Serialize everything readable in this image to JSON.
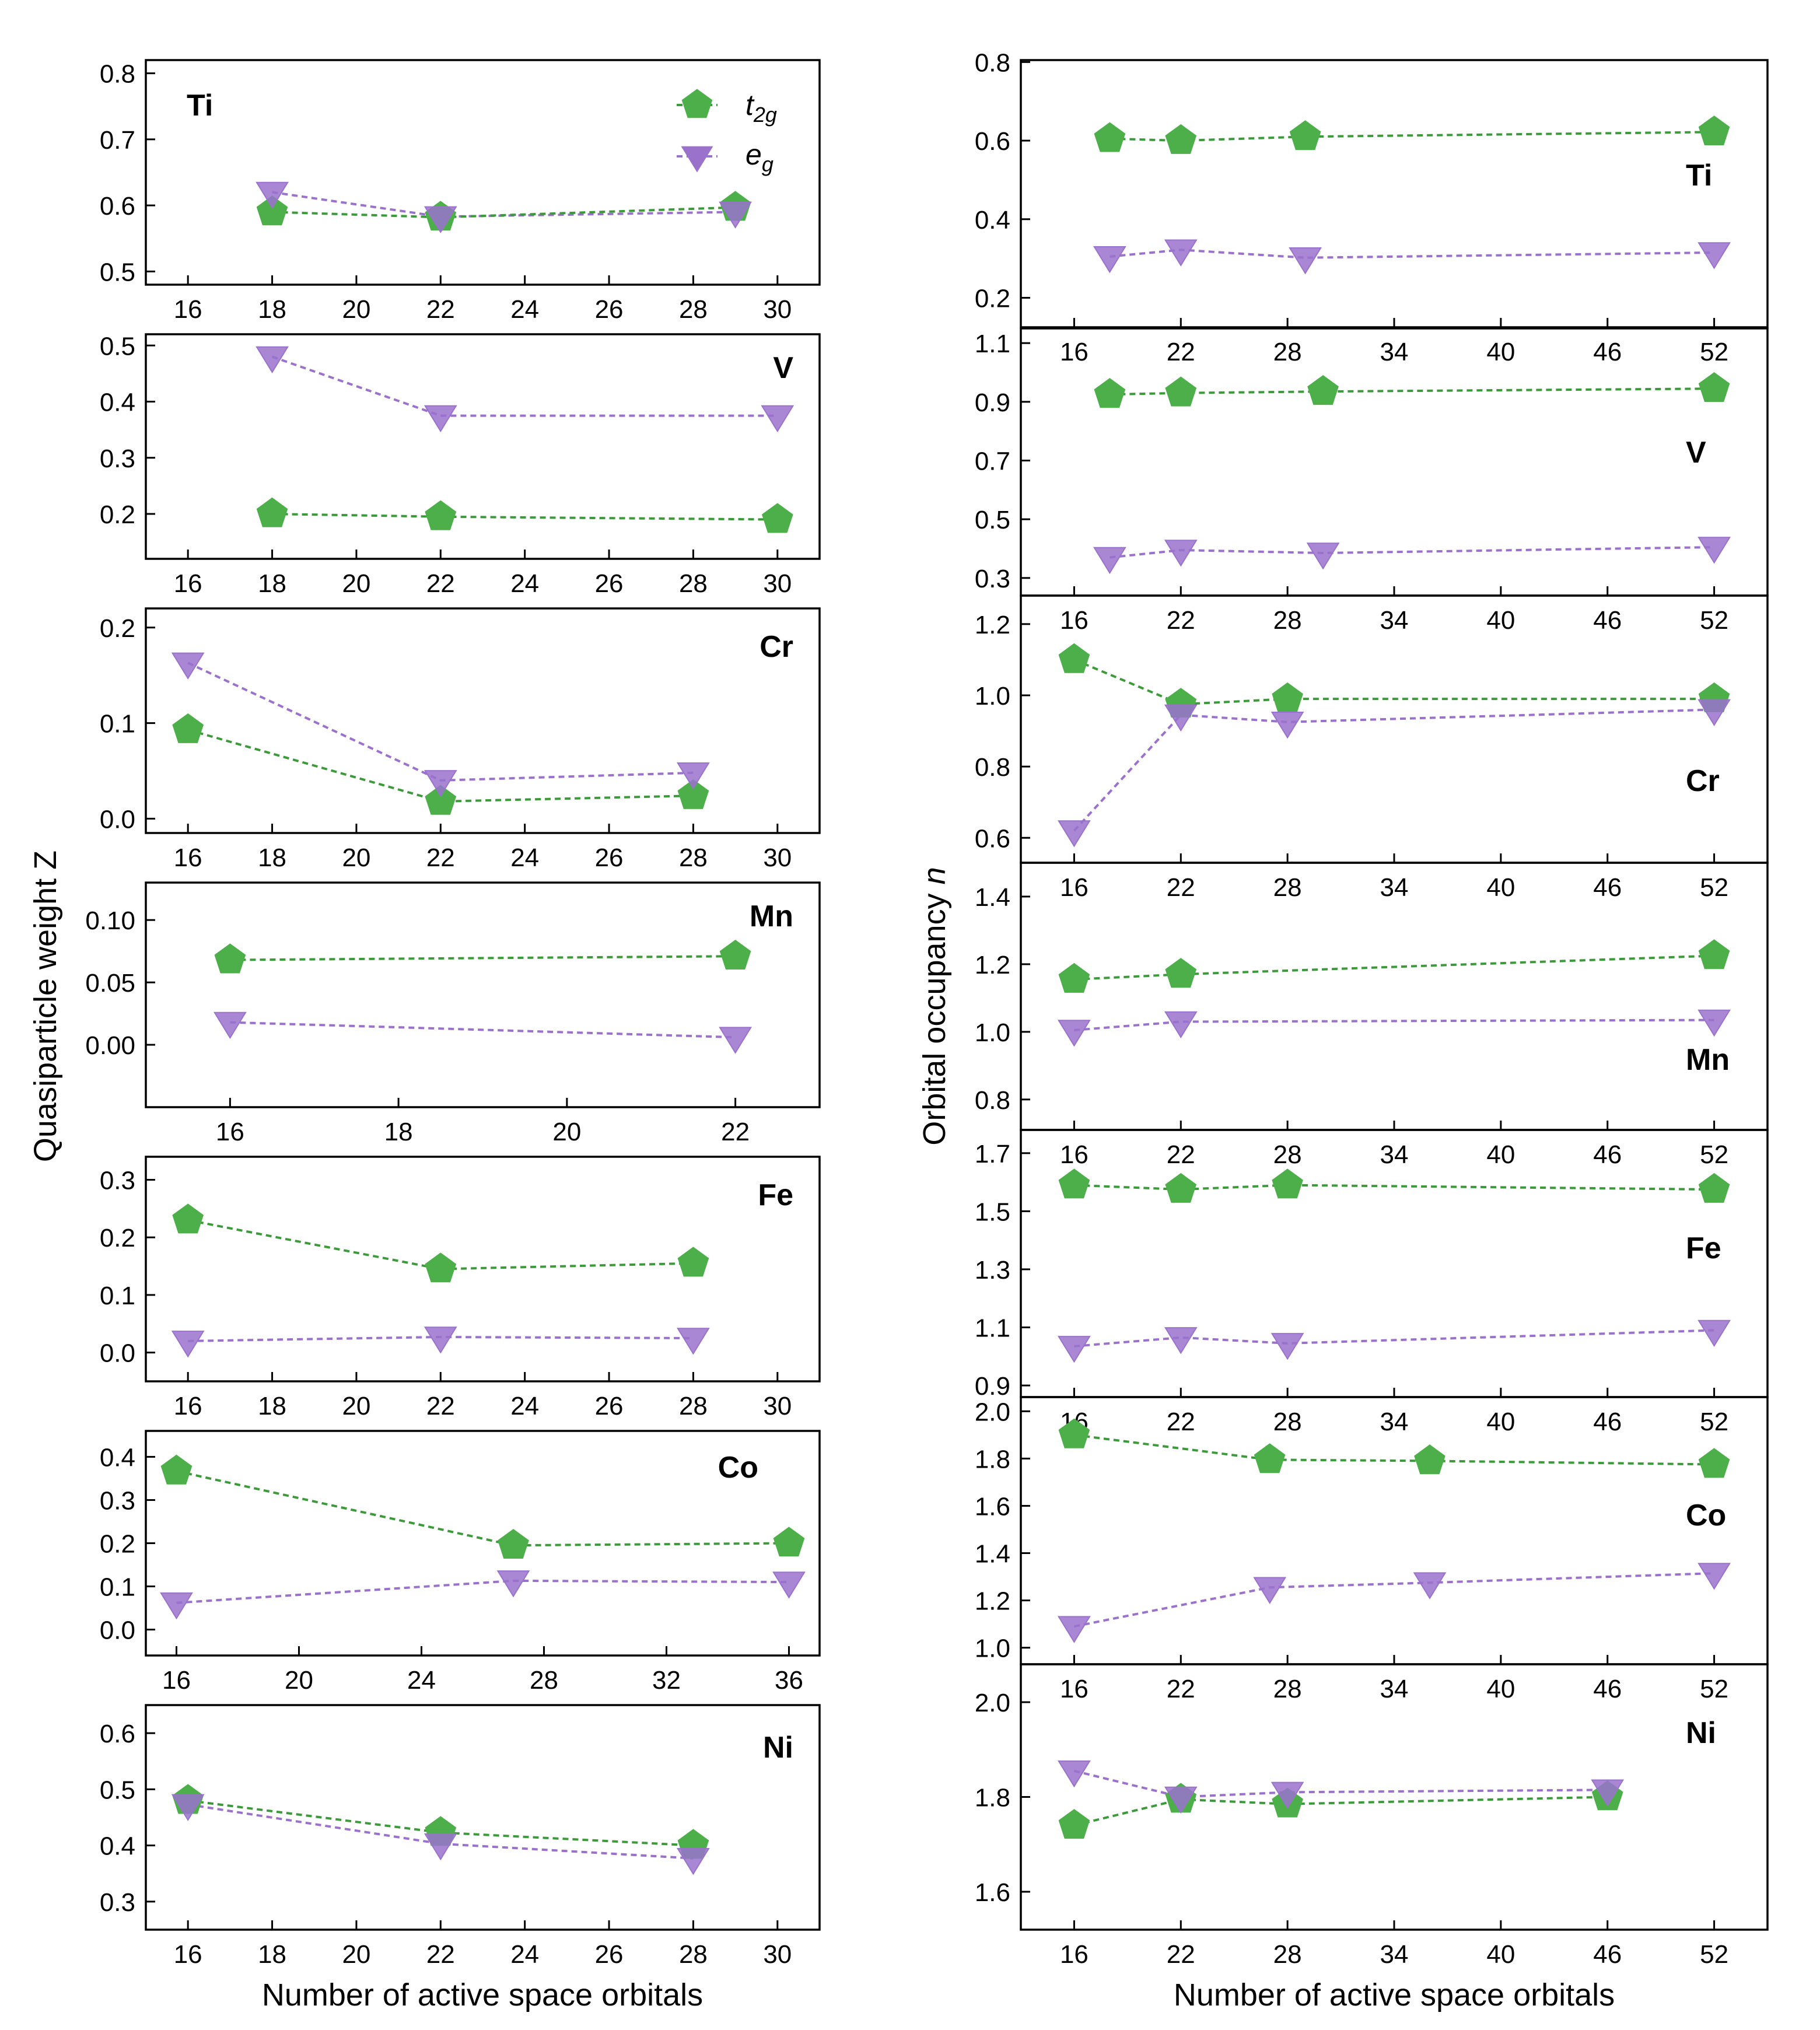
{
  "colors": {
    "t2g": "#4daf4a",
    "eg": "#9a72cc",
    "t2g_line": "#3c9a3a",
    "eg_line": "#9a72cc"
  },
  "legend": {
    "t2g_main": "t",
    "t2g_sub": "2g",
    "eg_main": "e",
    "eg_sub": "g"
  },
  "chart_data": [
    {
      "id": "left",
      "type": "line",
      "ylabel": "Quasiparticle weight Z",
      "xlabel": "Number of active space orbitals",
      "panels": [
        {
          "element": "Ti",
          "xlim": [
            15,
            31
          ],
          "xticks": [
            16,
            18,
            20,
            22,
            24,
            26,
            28,
            30
          ],
          "ylim": [
            0.48,
            0.82
          ],
          "yticks": [
            0.5,
            0.6,
            0.7,
            0.8
          ],
          "ytick_labels": [
            "0.5",
            "0.6",
            "0.7",
            "0.8"
          ],
          "t2g": {
            "x": [
              18,
              22,
              29
            ],
            "y": [
              0.59,
              0.582,
              0.597
            ]
          },
          "eg": {
            "x": [
              18,
              22,
              29
            ],
            "y": [
              0.62,
              0.583,
              0.59
            ]
          }
        },
        {
          "element": "V",
          "xlim": [
            15,
            31
          ],
          "xticks": [
            16,
            18,
            20,
            22,
            24,
            26,
            28,
            30
          ],
          "ylim": [
            0.12,
            0.52
          ],
          "yticks": [
            0.2,
            0.3,
            0.4,
            0.5
          ],
          "ytick_labels": [
            "0.2",
            "0.3",
            "0.4",
            "0.5"
          ],
          "t2g": {
            "x": [
              18,
              22,
              30
            ],
            "y": [
              0.2,
              0.195,
              0.19
            ]
          },
          "eg": {
            "x": [
              18,
              22,
              30
            ],
            "y": [
              0.48,
              0.375,
              0.375
            ]
          }
        },
        {
          "element": "Cr",
          "xlim": [
            15,
            31
          ],
          "xticks": [
            16,
            18,
            20,
            22,
            24,
            26,
            28,
            30
          ],
          "ylim": [
            -0.015,
            0.22
          ],
          "yticks": [
            0.0,
            0.1,
            0.2
          ],
          "ytick_labels": [
            "0.0",
            "0.1",
            "0.2"
          ],
          "t2g": {
            "x": [
              16,
              22,
              28
            ],
            "y": [
              0.093,
              0.018,
              0.024
            ]
          },
          "eg": {
            "x": [
              16,
              22,
              28
            ],
            "y": [
              0.163,
              0.04,
              0.048
            ]
          }
        },
        {
          "element": "Mn",
          "xlim": [
            15,
            23
          ],
          "xticks": [
            16,
            18,
            20,
            22
          ],
          "ylim": [
            -0.05,
            0.13
          ],
          "yticks": [
            0.0,
            0.05,
            0.1
          ],
          "ytick_labels": [
            "0.00",
            "0.05",
            "0.10"
          ],
          "t2g": {
            "x": [
              16,
              22
            ],
            "y": [
              0.068,
              0.071
            ]
          },
          "eg": {
            "x": [
              16,
              22
            ],
            "y": [
              0.018,
              0.006
            ]
          }
        },
        {
          "element": "Fe",
          "xlim": [
            15,
            31
          ],
          "xticks": [
            16,
            18,
            20,
            22,
            24,
            26,
            28,
            30
          ],
          "ylim": [
            -0.05,
            0.34
          ],
          "yticks": [
            0.0,
            0.1,
            0.2,
            0.3
          ],
          "ytick_labels": [
            "0.0",
            "0.1",
            "0.2",
            "0.3"
          ],
          "t2g": {
            "x": [
              16,
              22,
              28
            ],
            "y": [
              0.23,
              0.145,
              0.155
            ]
          },
          "eg": {
            "x": [
              16,
              22,
              28
            ],
            "y": [
              0.02,
              0.027,
              0.025
            ]
          }
        },
        {
          "element": "Co",
          "xlim": [
            15,
            37
          ],
          "xticks": [
            16,
            20,
            24,
            28,
            32,
            36
          ],
          "ylim": [
            -0.06,
            0.46
          ],
          "yticks": [
            0.0,
            0.1,
            0.2,
            0.3,
            0.4
          ],
          "ytick_labels": [
            "0.0",
            "0.1",
            "0.2",
            "0.3",
            "0.4"
          ],
          "t2g": {
            "x": [
              16,
              27,
              36
            ],
            "y": [
              0.367,
              0.195,
              0.2
            ]
          },
          "eg": {
            "x": [
              16,
              27,
              36
            ],
            "y": [
              0.062,
              0.113,
              0.11
            ]
          }
        },
        {
          "element": "Ni",
          "xlim": [
            15,
            31
          ],
          "xticks": [
            16,
            18,
            20,
            22,
            24,
            26,
            28,
            30
          ],
          "ylim": [
            0.25,
            0.65
          ],
          "yticks": [
            0.3,
            0.4,
            0.5,
            0.6
          ],
          "ytick_labels": [
            "0.3",
            "0.4",
            "0.5",
            "0.6"
          ],
          "t2g": {
            "x": [
              16,
              22,
              28
            ],
            "y": [
              0.48,
              0.423,
              0.4
            ]
          },
          "eg": {
            "x": [
              16,
              22,
              28
            ],
            "y": [
              0.473,
              0.403,
              0.377
            ]
          }
        }
      ]
    },
    {
      "id": "right",
      "type": "line",
      "ylabel_main": "Orbital occupancy ",
      "ylabel_var": "n",
      "xlabel": "Number of active space orbitals",
      "xlim": [
        13,
        55
      ],
      "xticks": [
        16,
        22,
        28,
        34,
        40,
        46,
        52
      ],
      "panels": [
        {
          "element": "Ti",
          "ylim": [
            0.125,
            0.805
          ],
          "yticks": [
            0.2,
            0.4,
            0.6,
            0.8
          ],
          "ytick_labels": [
            "0.2",
            "0.4",
            "0.6",
            "0.8"
          ],
          "t2g": {
            "x": [
              18,
              22,
              29,
              52
            ],
            "y": [
              0.605,
              0.6,
              0.61,
              0.622
            ]
          },
          "eg": {
            "x": [
              18,
              22,
              29,
              52
            ],
            "y": [
              0.305,
              0.322,
              0.302,
              0.315
            ]
          }
        },
        {
          "element": "V",
          "ylim": [
            0.24,
            1.15
          ],
          "yticks": [
            0.3,
            0.5,
            0.7,
            0.9,
            1.1
          ],
          "ytick_labels": [
            "0.3",
            "0.5",
            "0.7",
            "0.9",
            "1.1"
          ],
          "t2g": {
            "x": [
              18,
              22,
              30,
              52
            ],
            "y": [
              0.925,
              0.93,
              0.935,
              0.945
            ]
          },
          "eg": {
            "x": [
              18,
              22,
              30,
              52
            ],
            "y": [
              0.37,
              0.395,
              0.385,
              0.405
            ]
          }
        },
        {
          "element": "Cr",
          "ylim": [
            0.53,
            1.28
          ],
          "yticks": [
            0.6,
            0.8,
            1.0,
            1.2
          ],
          "ytick_labels": [
            "0.6",
            "0.8",
            "1.0",
            "1.2"
          ],
          "t2g": {
            "x": [
              16,
              22,
              28,
              52
            ],
            "y": [
              1.1,
              0.975,
              0.99,
              0.99
            ]
          },
          "eg": {
            "x": [
              16,
              22,
              28,
              52
            ],
            "y": [
              0.62,
              0.945,
              0.925,
              0.96
            ]
          }
        },
        {
          "element": "Mn",
          "ylim": [
            0.71,
            1.5
          ],
          "yticks": [
            0.8,
            1.0,
            1.2,
            1.4
          ],
          "ytick_labels": [
            "0.8",
            "1.0",
            "1.2",
            "1.4"
          ],
          "t2g": {
            "x": [
              16,
              22,
              52
            ],
            "y": [
              1.155,
              1.17,
              1.225
            ]
          },
          "eg": {
            "x": [
              16,
              22,
              52
            ],
            "y": [
              1.005,
              1.03,
              1.035
            ]
          }
        },
        {
          "element": "Fe",
          "ylim": [
            0.86,
            1.78
          ],
          "yticks": [
            0.9,
            1.1,
            1.3,
            1.5,
            1.7
          ],
          "ytick_labels": [
            "0.9",
            "1.1",
            "1.3",
            "1.5",
            "1.7"
          ],
          "t2g": {
            "x": [
              16,
              22,
              28,
              52
            ],
            "y": [
              1.59,
              1.575,
              1.59,
              1.575
            ]
          },
          "eg": {
            "x": [
              16,
              22,
              28,
              52
            ],
            "y": [
              1.035,
              1.065,
              1.045,
              1.09
            ]
          }
        },
        {
          "element": "Co",
          "ylim": [
            0.93,
            2.06
          ],
          "yticks": [
            1.0,
            1.2,
            1.4,
            1.6,
            1.8,
            2.0
          ],
          "ytick_labels": [
            "1.0",
            "1.2",
            "1.4",
            "1.6",
            "1.8",
            "2.0"
          ],
          "t2g": {
            "x": [
              16,
              27,
              36,
              52
            ],
            "y": [
              1.9,
              1.795,
              1.79,
              1.775
            ]
          },
          "eg": {
            "x": [
              16,
              27,
              36,
              52
            ],
            "y": [
              1.09,
              1.255,
              1.275,
              1.315
            ]
          }
        },
        {
          "element": "Ni",
          "ylim": [
            1.52,
            2.08
          ],
          "yticks": [
            1.6,
            1.8,
            2.0
          ],
          "ytick_labels": [
            "1.6",
            "1.8",
            "2.0"
          ],
          "t2g": {
            "x": [
              16,
              22,
              28,
              46
            ],
            "y": [
              1.74,
              1.795,
              1.785,
              1.8
            ]
          },
          "eg": {
            "x": [
              16,
              22,
              28,
              46
            ],
            "y": [
              1.855,
              1.8,
              1.81,
              1.815
            ]
          }
        }
      ]
    }
  ]
}
